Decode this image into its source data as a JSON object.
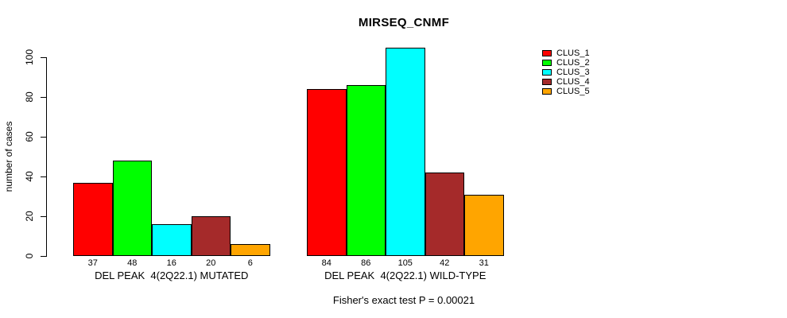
{
  "chart_data": {
    "type": "bar",
    "title": "MIRSEQ_CNMF",
    "subtitle": "Fisher's exact test P = 0.00021",
    "ylabel": "number of cases",
    "xlabel": "",
    "ylim": [
      0,
      105
    ],
    "yticks": [
      0,
      20,
      40,
      60,
      80,
      100
    ],
    "grid": false,
    "legend_position": "right-outside",
    "value_labels_shown": true,
    "categories": [
      "DEL PEAK  4(2Q22.1) MUTATED",
      "DEL PEAK  4(2Q22.1) WILD-TYPE"
    ],
    "series": [
      {
        "name": "CLUS_1",
        "color": "#ff0000",
        "values": [
          37,
          84
        ]
      },
      {
        "name": "CLUS_2",
        "color": "#00ff00",
        "values": [
          48,
          86
        ]
      },
      {
        "name": "CLUS_3",
        "color": "#00ffff",
        "values": [
          16,
          105
        ]
      },
      {
        "name": "CLUS_4",
        "color": "#a52a2a",
        "values": [
          20,
          42
        ]
      },
      {
        "name": "CLUS_5",
        "color": "#ffa500",
        "values": [
          6,
          31
        ]
      }
    ],
    "colors": {
      "bar_border": "#000000",
      "axis": "#000000",
      "text": "#000000",
      "background": "#ffffff"
    }
  }
}
